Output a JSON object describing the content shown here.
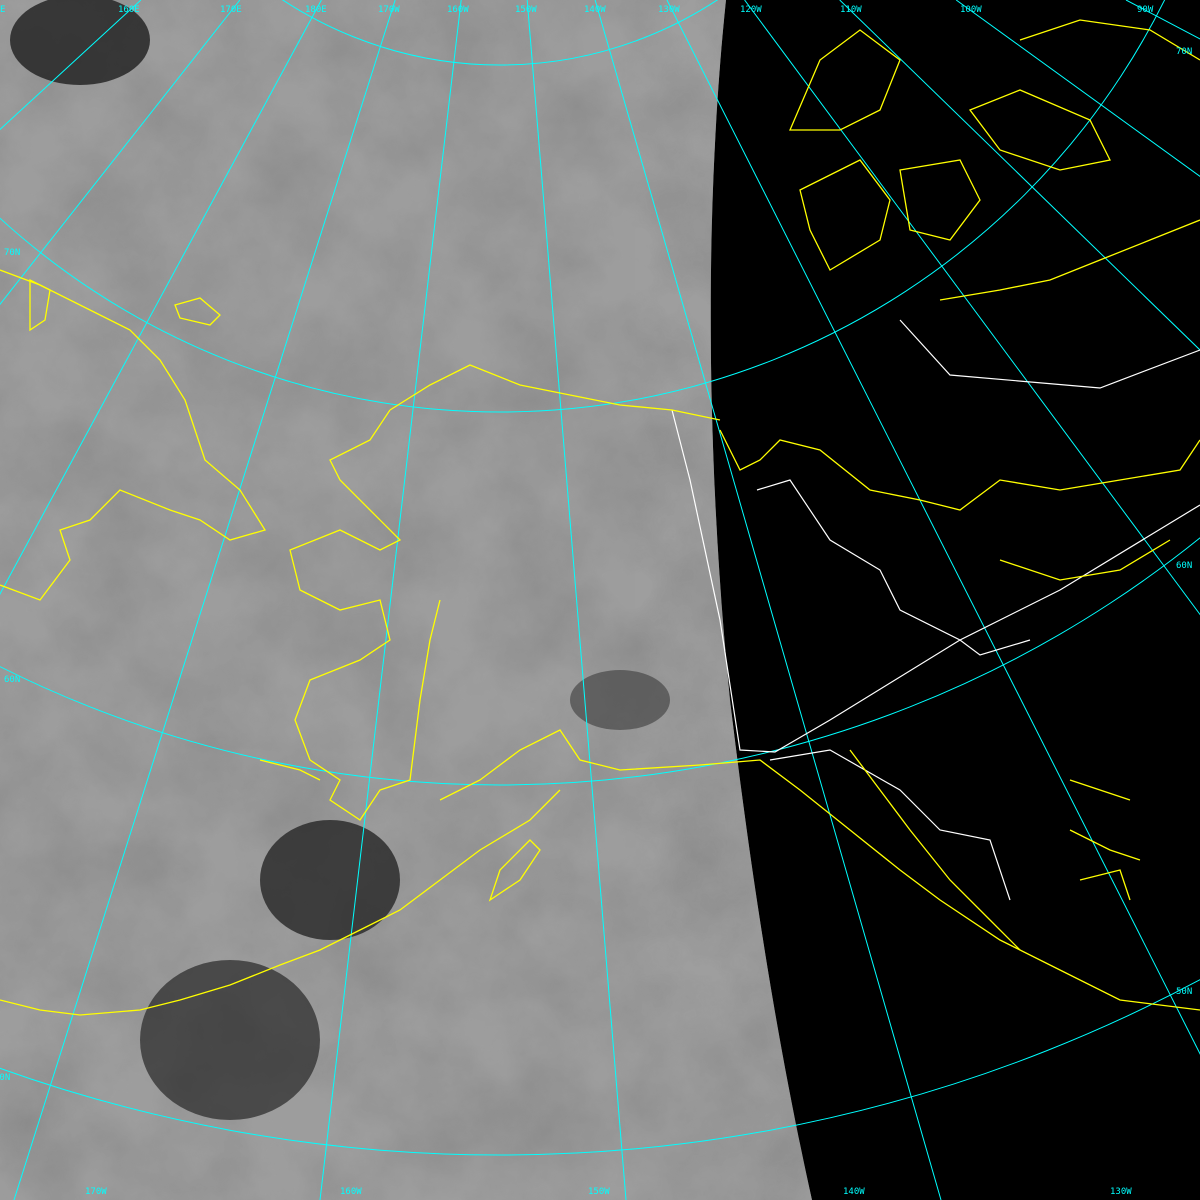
{
  "colors": {
    "graticule": "#00ffff",
    "coastline": "#ffff00",
    "border": "#ffffff",
    "space": "#000000"
  },
  "top_labels": [
    "E",
    "160E",
    "170E",
    "180E",
    "170W",
    "160W",
    "150W",
    "140W",
    "130W",
    "120W",
    "110W",
    "100W",
    "90W"
  ],
  "bottom_labels": [
    "170W",
    "160W",
    "150W",
    "140W",
    "130W"
  ],
  "left_labels": [
    "70N",
    "60N",
    "50N"
  ],
  "right_labels": [
    "70N",
    "60N",
    "50N"
  ]
}
